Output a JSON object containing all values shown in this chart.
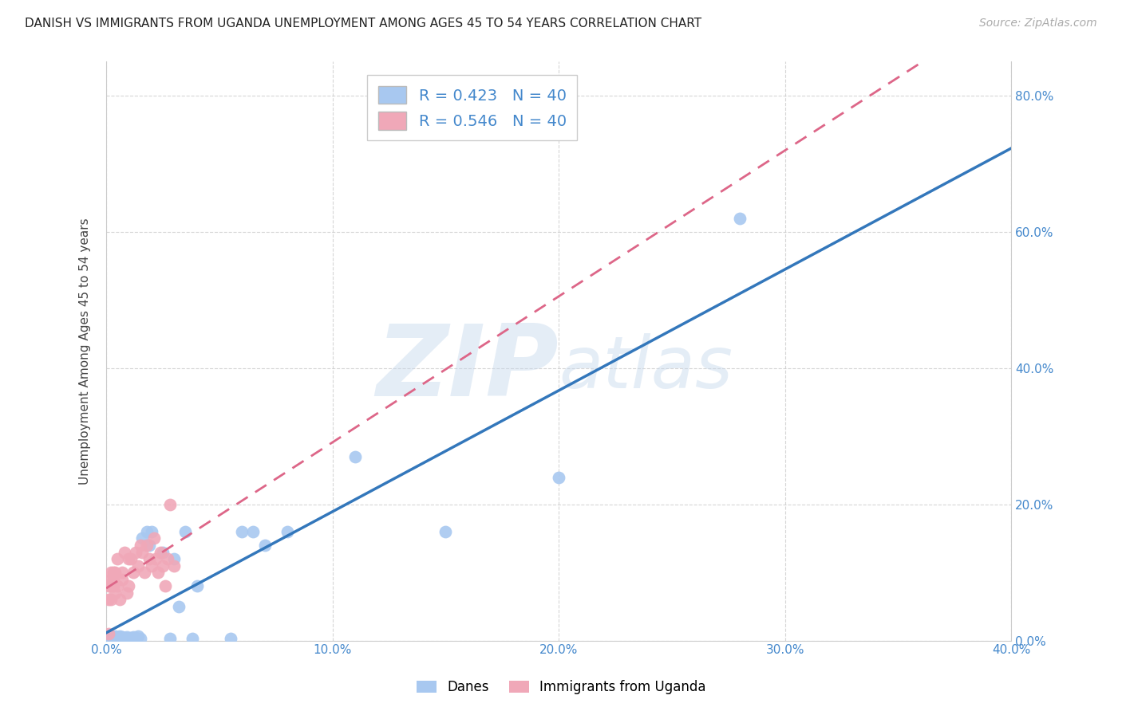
{
  "title": "DANISH VS IMMIGRANTS FROM UGANDA UNEMPLOYMENT AMONG AGES 45 TO 54 YEARS CORRELATION CHART",
  "source": "Source: ZipAtlas.com",
  "ylabel": "Unemployment Among Ages 45 to 54 years",
  "r_danes": 0.423,
  "n_danes": 40,
  "r_uganda": 0.546,
  "n_uganda": 40,
  "danes_color": "#a8c8f0",
  "uganda_color": "#f0a8b8",
  "danes_line_color": "#3377bb",
  "uganda_line_color": "#dd6688",
  "xlim": [
    0.0,
    0.4
  ],
  "ylim": [
    0.0,
    0.85
  ],
  "x_ticks": [
    0.0,
    0.1,
    0.2,
    0.3,
    0.4
  ],
  "y_ticks": [
    0.0,
    0.2,
    0.4,
    0.6,
    0.8
  ],
  "danes_x": [
    0.001,
    0.002,
    0.003,
    0.003,
    0.004,
    0.004,
    0.005,
    0.005,
    0.006,
    0.006,
    0.007,
    0.007,
    0.008,
    0.009,
    0.01,
    0.011,
    0.012,
    0.013,
    0.014,
    0.015,
    0.016,
    0.018,
    0.019,
    0.02,
    0.025,
    0.028,
    0.03,
    0.032,
    0.035,
    0.038,
    0.04,
    0.055,
    0.06,
    0.065,
    0.07,
    0.08,
    0.11,
    0.15,
    0.2,
    0.28
  ],
  "danes_y": [
    0.003,
    0.004,
    0.003,
    0.005,
    0.004,
    0.006,
    0.003,
    0.005,
    0.004,
    0.006,
    0.005,
    0.003,
    0.004,
    0.005,
    0.003,
    0.004,
    0.005,
    0.004,
    0.006,
    0.003,
    0.15,
    0.16,
    0.14,
    0.16,
    0.13,
    0.003,
    0.12,
    0.05,
    0.16,
    0.003,
    0.08,
    0.003,
    0.16,
    0.16,
    0.14,
    0.16,
    0.27,
    0.16,
    0.24,
    0.62
  ],
  "uganda_x": [
    0.001,
    0.001,
    0.001,
    0.002,
    0.002,
    0.002,
    0.002,
    0.003,
    0.003,
    0.003,
    0.004,
    0.004,
    0.005,
    0.005,
    0.006,
    0.007,
    0.007,
    0.008,
    0.009,
    0.01,
    0.01,
    0.011,
    0.012,
    0.013,
    0.014,
    0.015,
    0.016,
    0.017,
    0.018,
    0.019,
    0.02,
    0.021,
    0.022,
    0.023,
    0.024,
    0.025,
    0.026,
    0.027,
    0.028,
    0.03
  ],
  "uganda_y": [
    0.01,
    0.08,
    0.06,
    0.09,
    0.08,
    0.1,
    0.06,
    0.09,
    0.08,
    0.1,
    0.07,
    0.1,
    0.12,
    0.08,
    0.06,
    0.09,
    0.1,
    0.13,
    0.07,
    0.12,
    0.08,
    0.12,
    0.1,
    0.13,
    0.11,
    0.14,
    0.13,
    0.1,
    0.14,
    0.12,
    0.11,
    0.15,
    0.12,
    0.1,
    0.13,
    0.11,
    0.08,
    0.12,
    0.2,
    0.11
  ],
  "watermark_zip": "ZIP",
  "watermark_atlas": "atlas",
  "watermark_color_zip": "#c5d8ec",
  "watermark_color_atlas": "#c5d8ec",
  "grid_color": "#cccccc",
  "background_color": "#ffffff",
  "title_fontsize": 11,
  "ylabel_fontsize": 11,
  "tick_color": "#4488cc"
}
